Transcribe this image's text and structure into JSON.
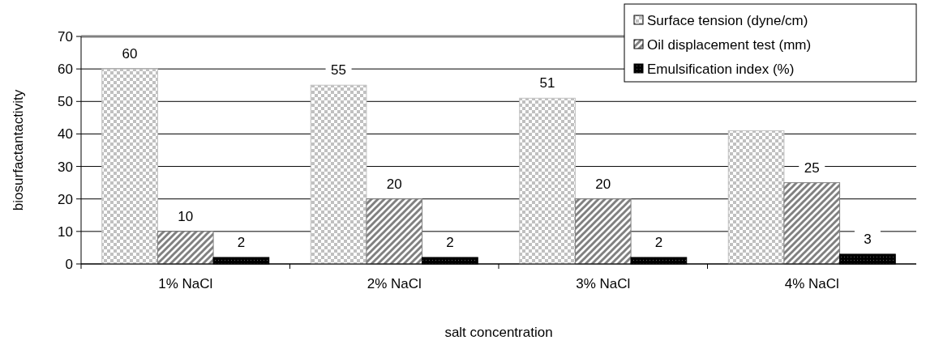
{
  "chart_data": {
    "type": "bar",
    "xlabel": "salt concentration",
    "ylabel": "biosurfactantactivity",
    "categories": [
      "1% NaCl",
      "2% NaCl",
      "3% NaCl",
      "4% NaCl"
    ],
    "series": [
      {
        "name": "Surface tension (dyne/cm)",
        "color": "#c0c0c0",
        "values": [
          60,
          55,
          51,
          41
        ],
        "value_labels": [
          "60",
          "55",
          "51",
          null
        ]
      },
      {
        "name": "Oil displacement test (mm)",
        "color": "#808080",
        "values": [
          10,
          20,
          20,
          25
        ],
        "value_labels": [
          "10",
          "20",
          "20",
          "25"
        ]
      },
      {
        "name": "Emulsification index (%)",
        "color": "#000000",
        "values": [
          2,
          2,
          2,
          3
        ],
        "value_labels": [
          "2",
          "2",
          "2",
          "3"
        ]
      }
    ],
    "ylim": [
      0,
      70
    ],
    "yticks": [
      0,
      10,
      20,
      30,
      40,
      50,
      60,
      70
    ],
    "grid": "y",
    "legend": "top right"
  }
}
